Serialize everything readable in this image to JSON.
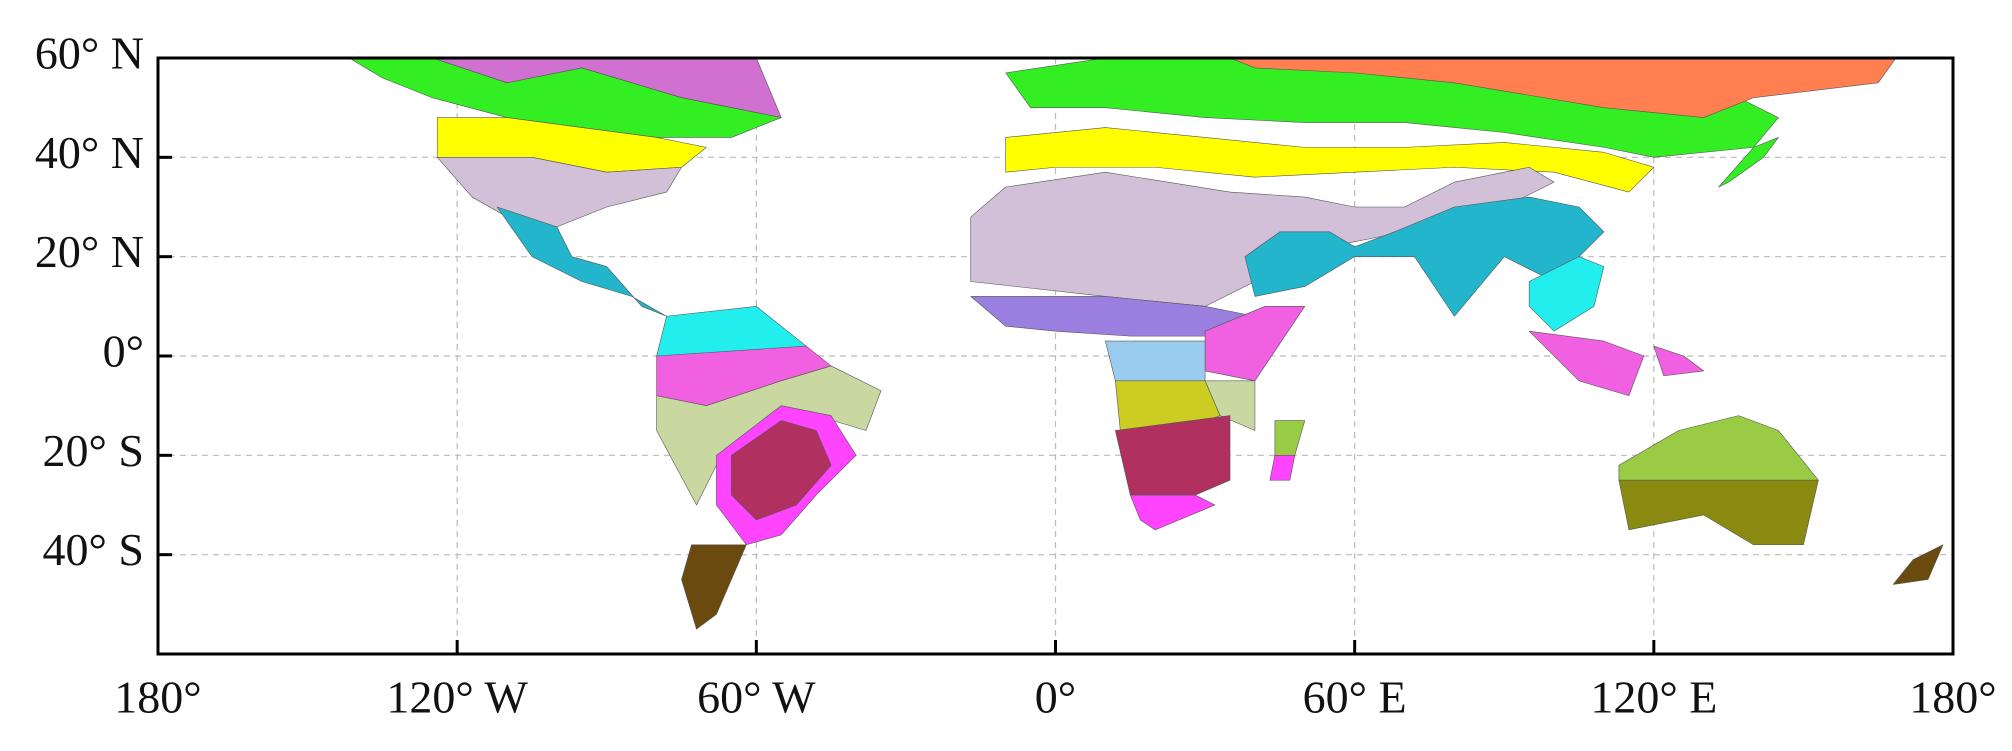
{
  "chart_data": {
    "type": "map",
    "xlim": [
      -180,
      180
    ],
    "ylim": [
      -60,
      60
    ],
    "xticks": [
      {
        "value": -180,
        "label": "180°"
      },
      {
        "value": -120,
        "label": "120° W"
      },
      {
        "value": -60,
        "label": "60° W"
      },
      {
        "value": 0,
        "label": "0°"
      },
      {
        "value": 60,
        "label": "60° E"
      },
      {
        "value": 120,
        "label": "120° E"
      },
      {
        "value": 180,
        "label": "180°"
      }
    ],
    "yticks": [
      {
        "value": 60,
        "label": "60° N"
      },
      {
        "value": 40,
        "label": "40° N"
      },
      {
        "value": 20,
        "label": "20° N"
      },
      {
        "value": 0,
        "label": "0°"
      },
      {
        "value": -20,
        "label": "20° S"
      },
      {
        "value": -40,
        "label": "40° S"
      }
    ],
    "grid": true
  }
}
